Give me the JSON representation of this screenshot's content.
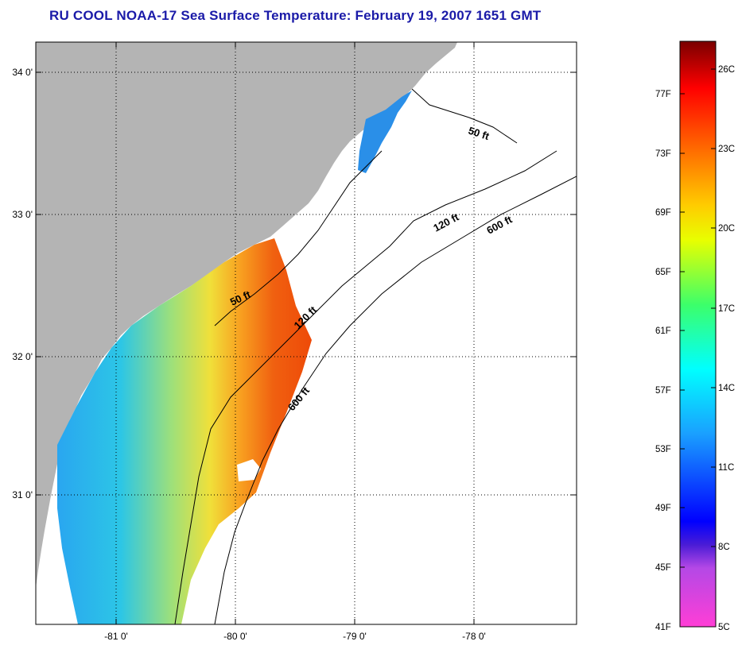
{
  "title": "RU COOL  NOAA-17  Sea Surface Temperature:  February 19, 2007 1651 GMT",
  "map": {
    "lat_ticks": [
      "34 0'",
      "33 0'",
      "32 0'",
      "31 0'"
    ],
    "lon_ticks": [
      "-81 0'",
      "-80 0'",
      "-79 0'",
      "-78 0'"
    ],
    "isobath_labels": [
      "50 ft",
      "50 ft",
      "120 ft",
      "120 ft",
      "600 ft",
      "600 ft"
    ]
  },
  "colorbar": {
    "fahrenheit": [
      "77F",
      "73F",
      "69F",
      "65F",
      "61F",
      "57F",
      "53F",
      "49F",
      "45F",
      "41F"
    ],
    "celsius": [
      "26C",
      "23C",
      "20C",
      "17C",
      "14C",
      "11C",
      "8C",
      "5C"
    ]
  },
  "colors": {
    "land": "#b4b4b4",
    "ocean_nodata": "#ffffff",
    "title": "#1a1aa8"
  }
}
